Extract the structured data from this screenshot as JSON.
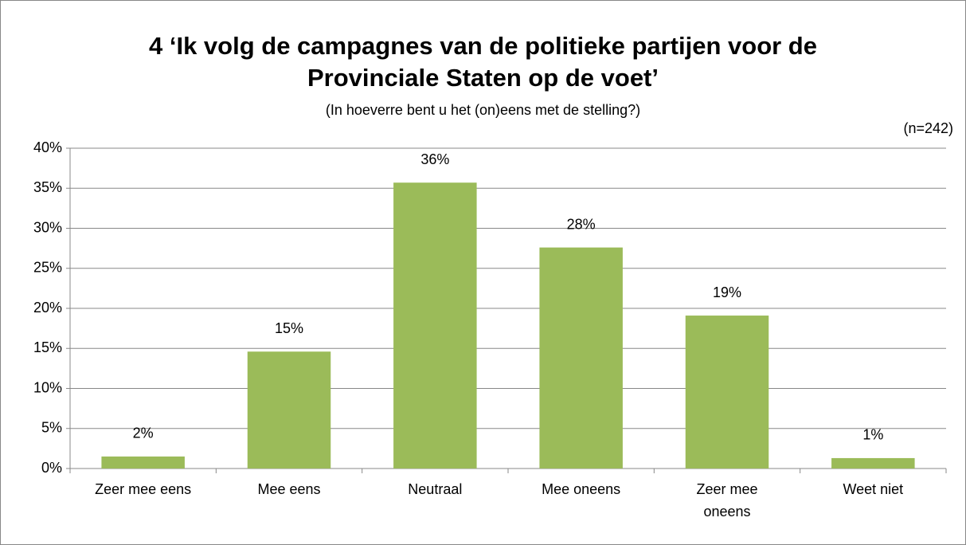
{
  "chart_data": {
    "type": "bar",
    "title": "4 ‘Ik volg de campagnes van de politieke partijen voor de Provinciale Staten op de voet’",
    "subtitle": "(In hoeverre bent u het (on)eens met de stelling?)",
    "annotation": "(n=242)",
    "categories": [
      "Zeer mee eens",
      "Mee eens",
      "Neutraal",
      "Mee oneens",
      "Zeer mee oneens",
      "Weet niet"
    ],
    "values": [
      1.5,
      14.6,
      35.7,
      27.6,
      19.1,
      1.3
    ],
    "value_labels": [
      "2%",
      "15%",
      "36%",
      "28%",
      "19%",
      "1%"
    ],
    "color": "#9bbb59",
    "ylim": [
      0,
      40
    ],
    "yticks": [
      {
        "value": 0,
        "label": "0%"
      },
      {
        "value": 5,
        "label": "5%"
      },
      {
        "value": 10,
        "label": "10%"
      },
      {
        "value": 15,
        "label": "15%"
      },
      {
        "value": 20,
        "label": "20%"
      },
      {
        "value": 25,
        "label": "25%"
      },
      {
        "value": 30,
        "label": "30%"
      },
      {
        "value": 35,
        "label": "35%"
      },
      {
        "value": 40,
        "label": "40%"
      }
    ],
    "grid": true
  }
}
